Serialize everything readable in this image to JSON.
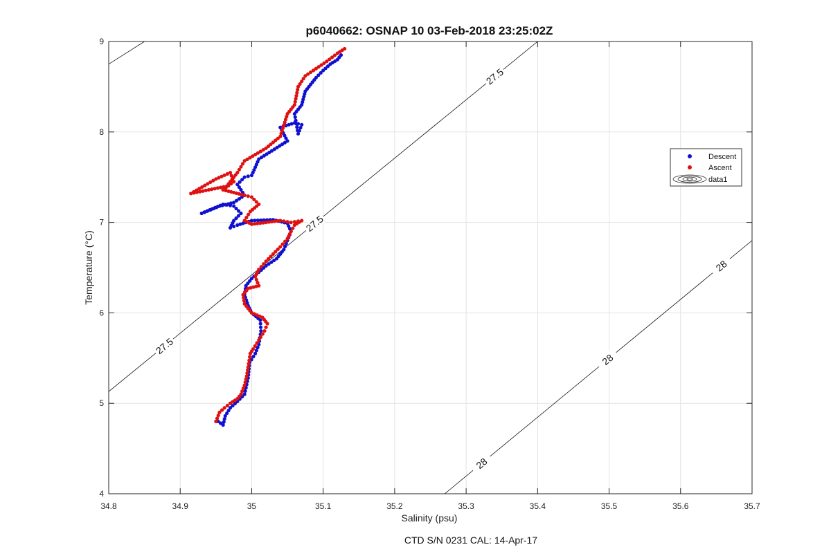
{
  "figure": {
    "title": "p6040662: OSNAP 10 03-Feb-2018 23:25:02Z",
    "footer": "CTD S/N 0231  CAL: 14-Apr-17"
  },
  "colors": {
    "descent": "#1010d0",
    "ascent": "#e01010",
    "grid": "#e3e3e3",
    "axis": "#262626"
  },
  "chart_data": {
    "type": "scatter",
    "title": "p6040662: OSNAP 10 03-Feb-2018 23:25:02Z",
    "xlabel": "Salinity (psu)",
    "ylabel": "Temperature (°C)",
    "xlim": [
      34.8,
      35.7
    ],
    "ylim": [
      4,
      9
    ],
    "xticks": [
      "34.8",
      "34.9",
      "35",
      "35.1",
      "35.2",
      "35.3",
      "35.4",
      "35.5",
      "35.6",
      "35.7"
    ],
    "yticks": [
      "4",
      "5",
      "6",
      "7",
      "8",
      "9"
    ],
    "grid": true,
    "legend": {
      "position": "right",
      "entries": [
        "Descent",
        "Ascent",
        "data1"
      ]
    },
    "series": [
      {
        "name": "Descent",
        "path": [
          [
            34.953,
            4.8
          ],
          [
            34.96,
            4.76
          ],
          [
            34.963,
            4.86
          ],
          [
            34.97,
            4.95
          ],
          [
            34.98,
            5.02
          ],
          [
            34.99,
            5.1
          ],
          [
            34.995,
            5.28
          ],
          [
            34.997,
            5.45
          ],
          [
            35.005,
            5.55
          ],
          [
            35.01,
            5.65
          ],
          [
            35.013,
            5.8
          ],
          [
            35.012,
            5.92
          ],
          [
            35.0,
            6.0
          ],
          [
            34.995,
            6.08
          ],
          [
            34.99,
            6.2
          ],
          [
            34.992,
            6.3
          ],
          [
            35.0,
            6.38
          ],
          [
            35.01,
            6.45
          ],
          [
            35.02,
            6.52
          ],
          [
            35.035,
            6.6
          ],
          [
            35.045,
            6.7
          ],
          [
            35.05,
            6.8
          ],
          [
            35.055,
            6.9
          ],
          [
            35.05,
            6.99
          ],
          [
            35.03,
            7.03
          ],
          [
            35.0,
            7.02
          ],
          [
            34.98,
            6.97
          ],
          [
            34.97,
            6.94
          ],
          [
            34.975,
            7.02
          ],
          [
            34.985,
            7.1
          ],
          [
            34.975,
            7.18
          ],
          [
            34.96,
            7.2
          ],
          [
            34.945,
            7.15
          ],
          [
            34.93,
            7.1
          ],
          [
            34.955,
            7.18
          ],
          [
            34.975,
            7.22
          ],
          [
            34.99,
            7.3
          ],
          [
            34.98,
            7.42
          ],
          [
            34.99,
            7.5
          ],
          [
            35.0,
            7.52
          ],
          [
            35.01,
            7.7
          ],
          [
            35.05,
            7.9
          ],
          [
            35.04,
            8.05
          ],
          [
            35.06,
            8.1
          ],
          [
            35.07,
            8.08
          ],
          [
            35.065,
            7.98
          ],
          [
            35.06,
            8.2
          ],
          [
            35.07,
            8.3
          ],
          [
            35.075,
            8.45
          ],
          [
            35.09,
            8.6
          ],
          [
            35.1,
            8.68
          ],
          [
            35.11,
            8.75
          ],
          [
            35.12,
            8.8
          ],
          [
            35.125,
            8.85
          ]
        ]
      },
      {
        "name": "Ascent",
        "path": [
          [
            34.95,
            4.8
          ],
          [
            34.955,
            4.9
          ],
          [
            34.962,
            4.95
          ],
          [
            34.97,
            5.0
          ],
          [
            34.98,
            5.05
          ],
          [
            34.985,
            5.1
          ],
          [
            34.99,
            5.2
          ],
          [
            34.993,
            5.3
          ],
          [
            34.995,
            5.4
          ],
          [
            34.998,
            5.55
          ],
          [
            35.002,
            5.6
          ],
          [
            35.01,
            5.7
          ],
          [
            35.018,
            5.8
          ],
          [
            35.022,
            5.88
          ],
          [
            35.015,
            5.95
          ],
          [
            35.0,
            6.0
          ],
          [
            34.99,
            6.1
          ],
          [
            34.988,
            6.2
          ],
          [
            34.995,
            6.27
          ],
          [
            35.01,
            6.3
          ],
          [
            35.005,
            6.4
          ],
          [
            35.01,
            6.48
          ],
          [
            35.02,
            6.57
          ],
          [
            35.03,
            6.65
          ],
          [
            35.04,
            6.73
          ],
          [
            35.05,
            6.82
          ],
          [
            35.055,
            6.9
          ],
          [
            35.06,
            6.97
          ],
          [
            35.07,
            7.02
          ],
          [
            35.055,
            7.0
          ],
          [
            35.04,
            7.02
          ],
          [
            35.02,
            7.0
          ],
          [
            35.0,
            6.98
          ],
          [
            34.99,
            7.02
          ],
          [
            34.998,
            7.12
          ],
          [
            35.01,
            7.2
          ],
          [
            35.0,
            7.28
          ],
          [
            34.99,
            7.3
          ],
          [
            34.975,
            7.33
          ],
          [
            34.96,
            7.36
          ],
          [
            34.975,
            7.45
          ],
          [
            34.97,
            7.55
          ],
          [
            34.95,
            7.48
          ],
          [
            34.915,
            7.32
          ],
          [
            34.965,
            7.4
          ],
          [
            34.98,
            7.55
          ],
          [
            34.99,
            7.68
          ],
          [
            35.02,
            7.82
          ],
          [
            35.04,
            7.95
          ],
          [
            35.05,
            8.2
          ],
          [
            35.06,
            8.3
          ],
          [
            35.065,
            8.5
          ],
          [
            35.075,
            8.62
          ],
          [
            35.09,
            8.7
          ],
          [
            35.105,
            8.78
          ],
          [
            35.12,
            8.87
          ],
          [
            35.13,
            8.92
          ]
        ]
      }
    ],
    "contours": [
      {
        "level": "27.5",
        "segments": [
          [
            [
              34.8,
              5.13
            ],
            [
              35.4,
              9.0
            ]
          ],
          [
            [
              34.8,
              8.75
            ],
            [
              34.85,
              9.0
            ]
          ]
        ]
      },
      {
        "level": "28",
        "segments": [
          [
            [
              35.27,
              4.0
            ],
            [
              35.7,
              6.8
            ]
          ]
        ]
      }
    ]
  },
  "axes_labels": {
    "xlabel": "Salinity (psu)",
    "ylabel": "Temperature (°C)"
  }
}
